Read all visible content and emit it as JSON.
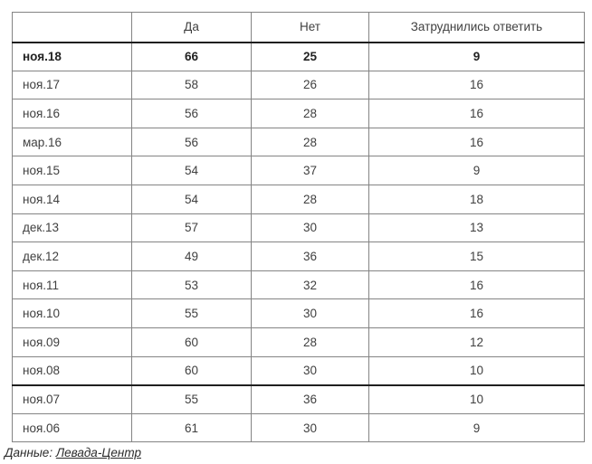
{
  "table": {
    "columns": [
      "",
      "Да",
      "Нет",
      "Затруднились ответить"
    ],
    "rows": [
      {
        "label": "ноя.18",
        "values": [
          "66",
          "25",
          "9"
        ],
        "bold": true,
        "thick_top": true
      },
      {
        "label": "ноя.17",
        "values": [
          "58",
          "26",
          "16"
        ]
      },
      {
        "label": "ноя.16",
        "values": [
          "56",
          "28",
          "16"
        ]
      },
      {
        "label": "мар.16",
        "values": [
          "56",
          "28",
          "16"
        ]
      },
      {
        "label": "ноя.15",
        "values": [
          "54",
          "37",
          "9"
        ]
      },
      {
        "label": "ноя.14",
        "values": [
          "54",
          "28",
          "18"
        ]
      },
      {
        "label": "дек.13",
        "values": [
          "57",
          "30",
          "13"
        ]
      },
      {
        "label": "дек.12",
        "values": [
          "49",
          "36",
          "15"
        ]
      },
      {
        "label": "ноя.11",
        "values": [
          "53",
          "32",
          "16"
        ]
      },
      {
        "label": "ноя.10",
        "values": [
          "55",
          "30",
          "16"
        ]
      },
      {
        "label": "ноя.09",
        "values": [
          "60",
          "28",
          "12"
        ]
      },
      {
        "label": "ноя.08",
        "values": [
          "60",
          "30",
          "10"
        ]
      },
      {
        "label": "ноя.07",
        "values": [
          "55",
          "36",
          "10"
        ],
        "thick_top": true
      },
      {
        "label": "ноя.06",
        "values": [
          "61",
          "30",
          "9"
        ]
      }
    ]
  },
  "footer": {
    "prefix": "Данные: ",
    "source": "Левада-Центр"
  },
  "colors": {
    "border_normal": "#848484",
    "border_emphasis": "#1f1f1f",
    "text_normal": "#404040",
    "text_bold": "#222222"
  },
  "chart_data": {
    "type": "table",
    "title": "",
    "columns": [
      "",
      "Да",
      "Нет",
      "Затруднились ответить"
    ],
    "categories": [
      "ноя.18",
      "ноя.17",
      "ноя.16",
      "мар.16",
      "ноя.15",
      "ноя.14",
      "дек.13",
      "дек.12",
      "ноя.11",
      "ноя.10",
      "ноя.09",
      "ноя.08",
      "ноя.07",
      "ноя.06"
    ],
    "series": [
      {
        "name": "Да",
        "values": [
          66,
          58,
          56,
          56,
          54,
          54,
          57,
          49,
          53,
          55,
          60,
          60,
          55,
          61
        ]
      },
      {
        "name": "Нет",
        "values": [
          25,
          26,
          28,
          28,
          37,
          28,
          30,
          36,
          32,
          30,
          28,
          30,
          36,
          30
        ]
      },
      {
        "name": "Затруднились ответить",
        "values": [
          9,
          16,
          16,
          16,
          9,
          18,
          13,
          15,
          16,
          16,
          12,
          10,
          10,
          9
        ]
      }
    ],
    "source_note": "Данные: Левада-Центр",
    "emphasized_row": "ноя.18"
  }
}
